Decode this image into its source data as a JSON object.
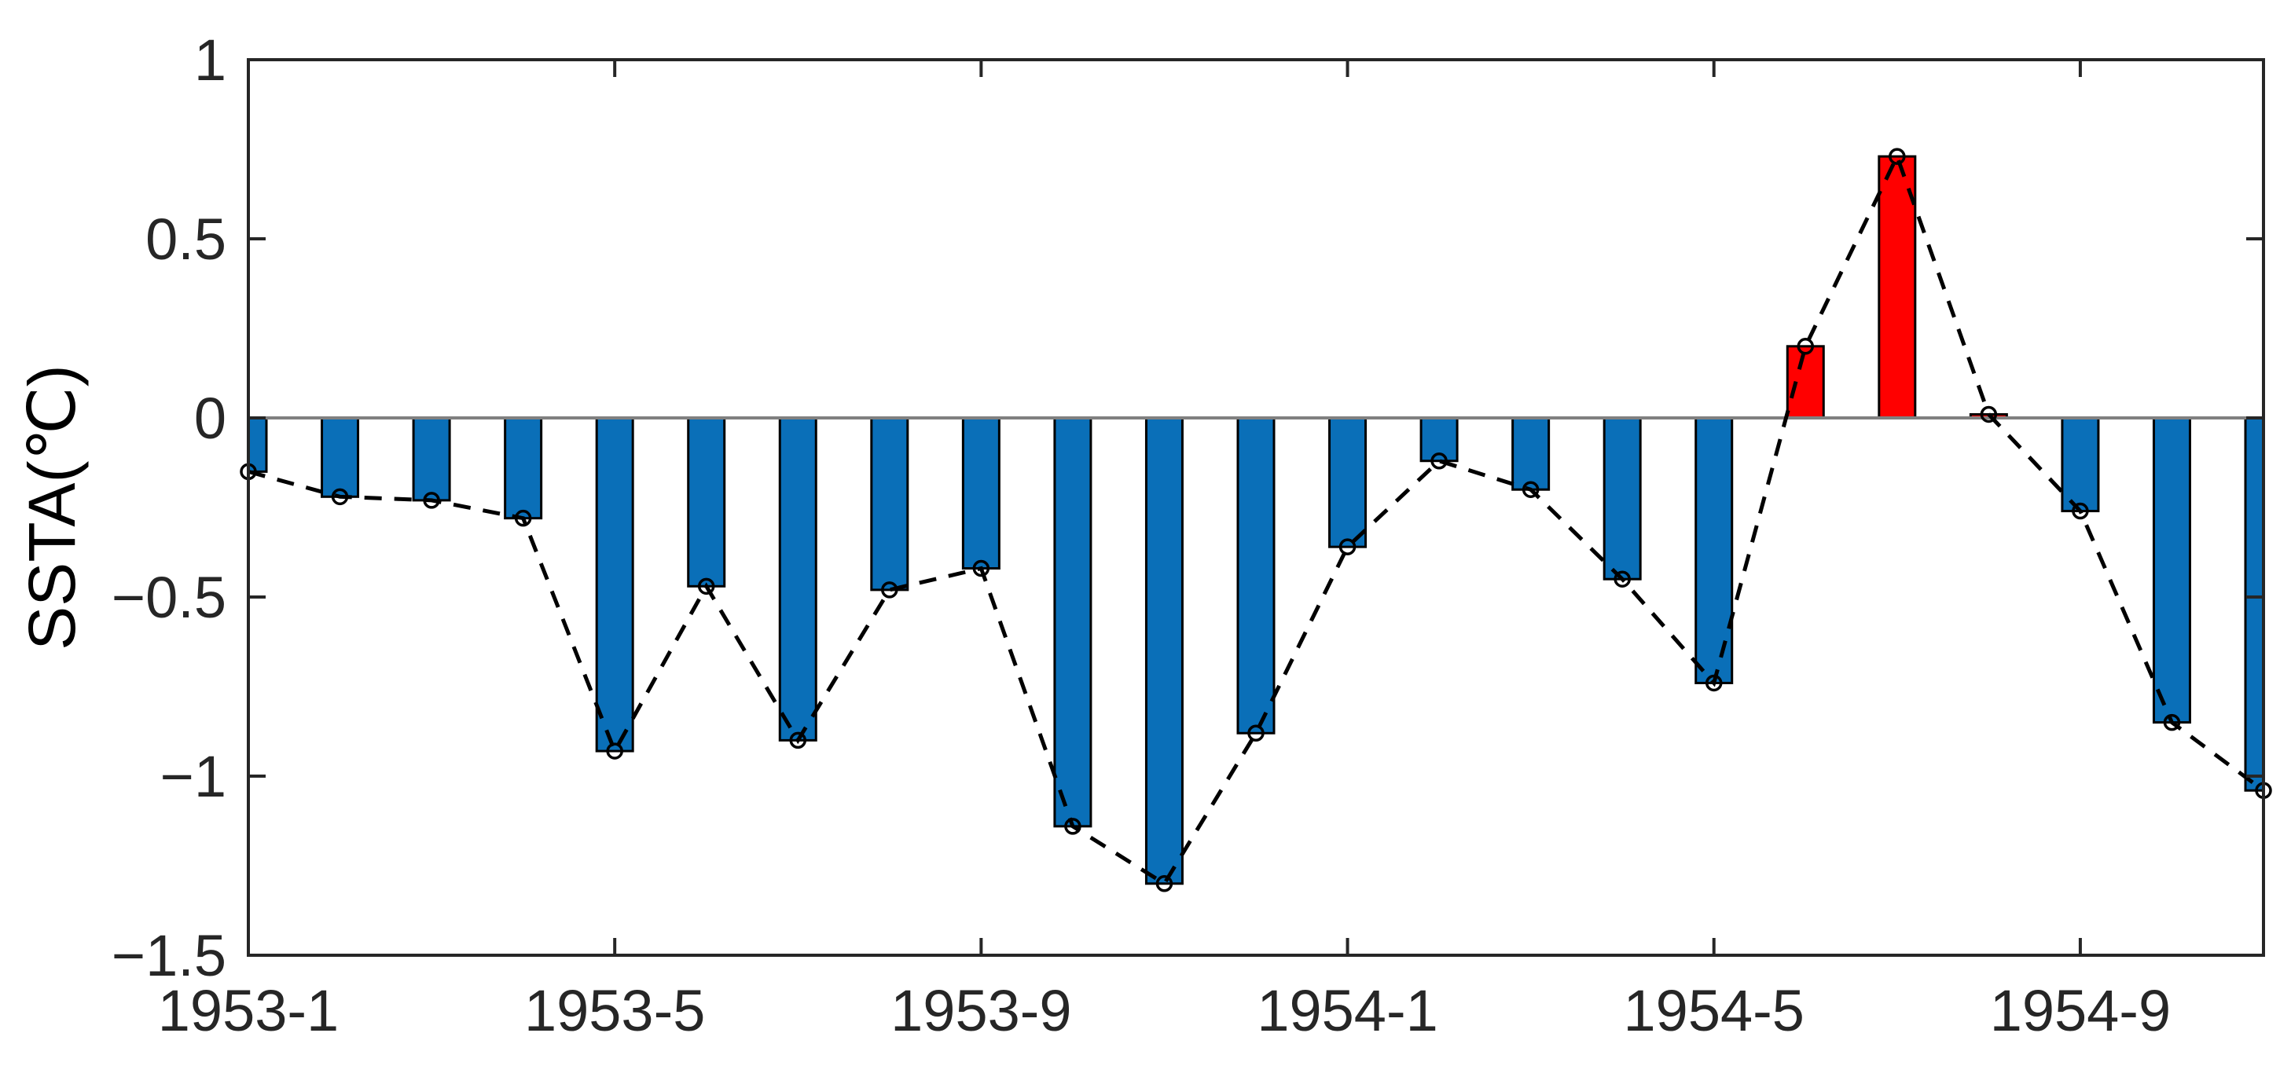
{
  "chart_data": {
    "type": "bar",
    "ylabel": "SSTA(℃)",
    "xlabel": "",
    "title": "",
    "ylim": [
      -1.5,
      1
    ],
    "yticks": [
      -1.5,
      -1,
      -0.5,
      0,
      0.5,
      1
    ],
    "ytick_labels": [
      "−1.5",
      "−1",
      "−0.5",
      "0",
      "0.5",
      "1"
    ],
    "x_tick_positions": [
      1,
      5,
      9,
      13,
      17,
      21
    ],
    "x_tick_labels": [
      "1953-1",
      "1953-5",
      "1953-9",
      "1954-1",
      "1954-5",
      "1954-9"
    ],
    "x": [
      1,
      2,
      3,
      4,
      5,
      6,
      7,
      8,
      9,
      10,
      11,
      12,
      13,
      14,
      15,
      16,
      17,
      18,
      19,
      20,
      21,
      22,
      23
    ],
    "values": [
      -0.15,
      -0.22,
      -0.23,
      -0.28,
      -0.93,
      -0.47,
      -0.9,
      -0.48,
      -0.42,
      -1.14,
      -1.3,
      -0.88,
      -0.36,
      -0.12,
      -0.2,
      -0.45,
      -0.74,
      0.2,
      0.73,
      0.01,
      -0.26,
      -0.85,
      -1.04
    ],
    "colors": {
      "negative": "#0a6fb8",
      "positive": "#ff0000",
      "line": "#000000"
    },
    "grid": false,
    "line_overlay": {
      "style": "dashed",
      "markers": "circle"
    }
  }
}
